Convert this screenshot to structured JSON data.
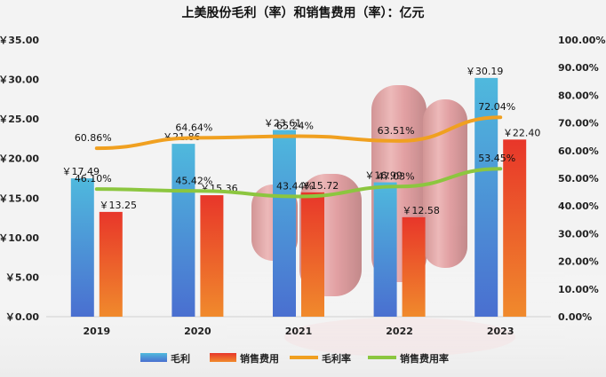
{
  "chart_data": {
    "type": "bar",
    "title": "上美股份毛利（率）和销售费用（率）：亿元",
    "categories": [
      "2019",
      "2020",
      "2021",
      "2022",
      "2023"
    ],
    "series": [
      {
        "name": "毛利",
        "kind": "bar",
        "axis": "left",
        "values": [
          17.49,
          21.86,
          23.61,
          16.99,
          30.19
        ],
        "labels": [
          "￥17.49",
          "￥21.86",
          "￥23.61",
          "￥16.99",
          "￥30.19"
        ],
        "color_top": "#4fb9dd",
        "color_bottom": "#4a6fd0"
      },
      {
        "name": "销售费用",
        "kind": "bar",
        "axis": "left",
        "values": [
          13.25,
          15.36,
          15.72,
          12.58,
          22.4
        ],
        "labels": [
          "￥13.25",
          "￥15.36",
          "￥15.72",
          "￥12.58",
          "￥22.40"
        ],
        "color_top": "#e8362a",
        "color_bottom": "#f08a2c"
      },
      {
        "name": "毛利率",
        "kind": "line",
        "axis": "right",
        "values": [
          60.86,
          64.64,
          65.24,
          63.51,
          72.04
        ],
        "labels": [
          "60.86%",
          "64.64%",
          "65.24%",
          "63.51%",
          "72.04%"
        ],
        "color": "#f0a020"
      },
      {
        "name": "销售费用率",
        "kind": "line",
        "axis": "right",
        "values": [
          46.1,
          45.42,
          43.44,
          47.03,
          53.45
        ],
        "labels": [
          "46.10%",
          "45.42%",
          "43.44%",
          "47.03%",
          "53.45%"
        ],
        "color": "#8cc63f"
      }
    ],
    "left_axis": {
      "min": 0,
      "max": 35,
      "step": 5,
      "tick_labels": [
        "￥0.00",
        "￥5.00",
        "￥10.00",
        "￥15.00",
        "￥20.00",
        "￥25.00",
        "￥30.00",
        "￥35.00"
      ]
    },
    "right_axis": {
      "min": 0,
      "max": 100,
      "step": 10,
      "tick_labels": [
        "0.00%",
        "10.00%",
        "20.00%",
        "30.00%",
        "40.00%",
        "50.00%",
        "60.00%",
        "70.00%",
        "80.00%",
        "90.00%",
        "100.00%"
      ]
    },
    "legend": {
      "position": "bottom",
      "entries": [
        "毛利",
        "销售费用",
        "毛利率",
        "销售费用率"
      ]
    },
    "grid": false
  }
}
